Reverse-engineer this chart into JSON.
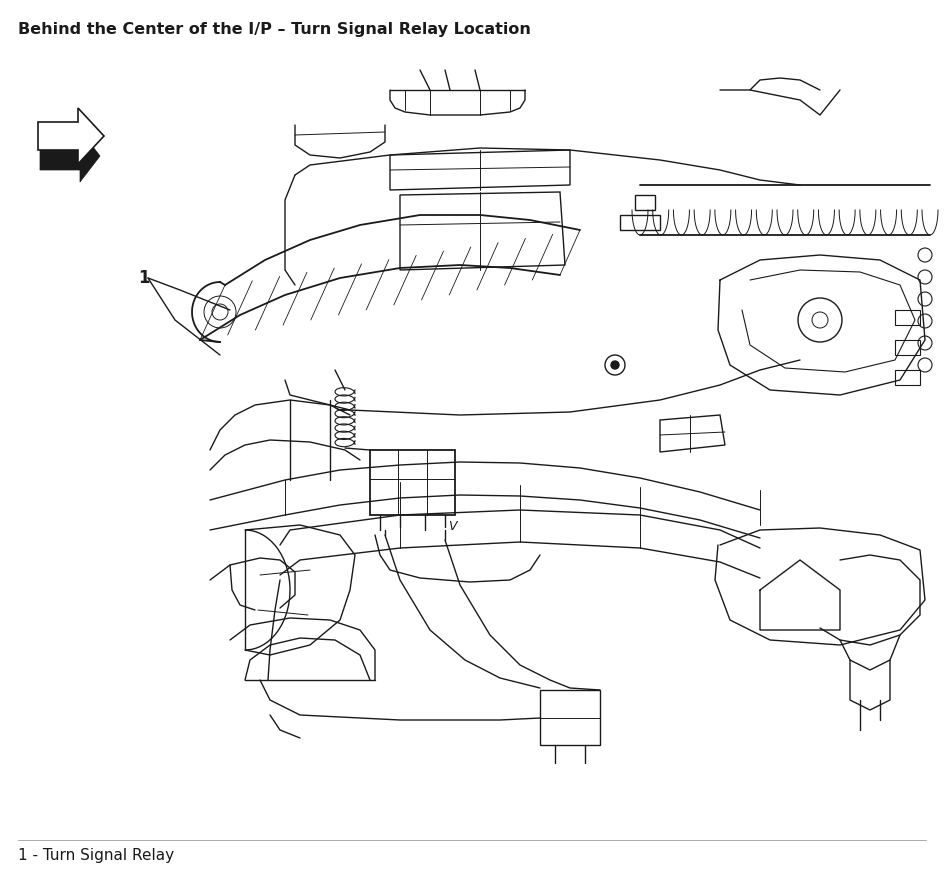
{
  "title": "Behind the Center of the I/P – Turn Signal Relay Location",
  "caption": "1 - Turn Signal Relay",
  "title_fontsize": 11.5,
  "caption_fontsize": 11,
  "label_1_text": "1",
  "label_1_fontsize": 12,
  "bg_color": "#ffffff",
  "fig_width": 9.44,
  "fig_height": 8.84,
  "line_color": "#1a1a1a",
  "line_width": 1.0
}
